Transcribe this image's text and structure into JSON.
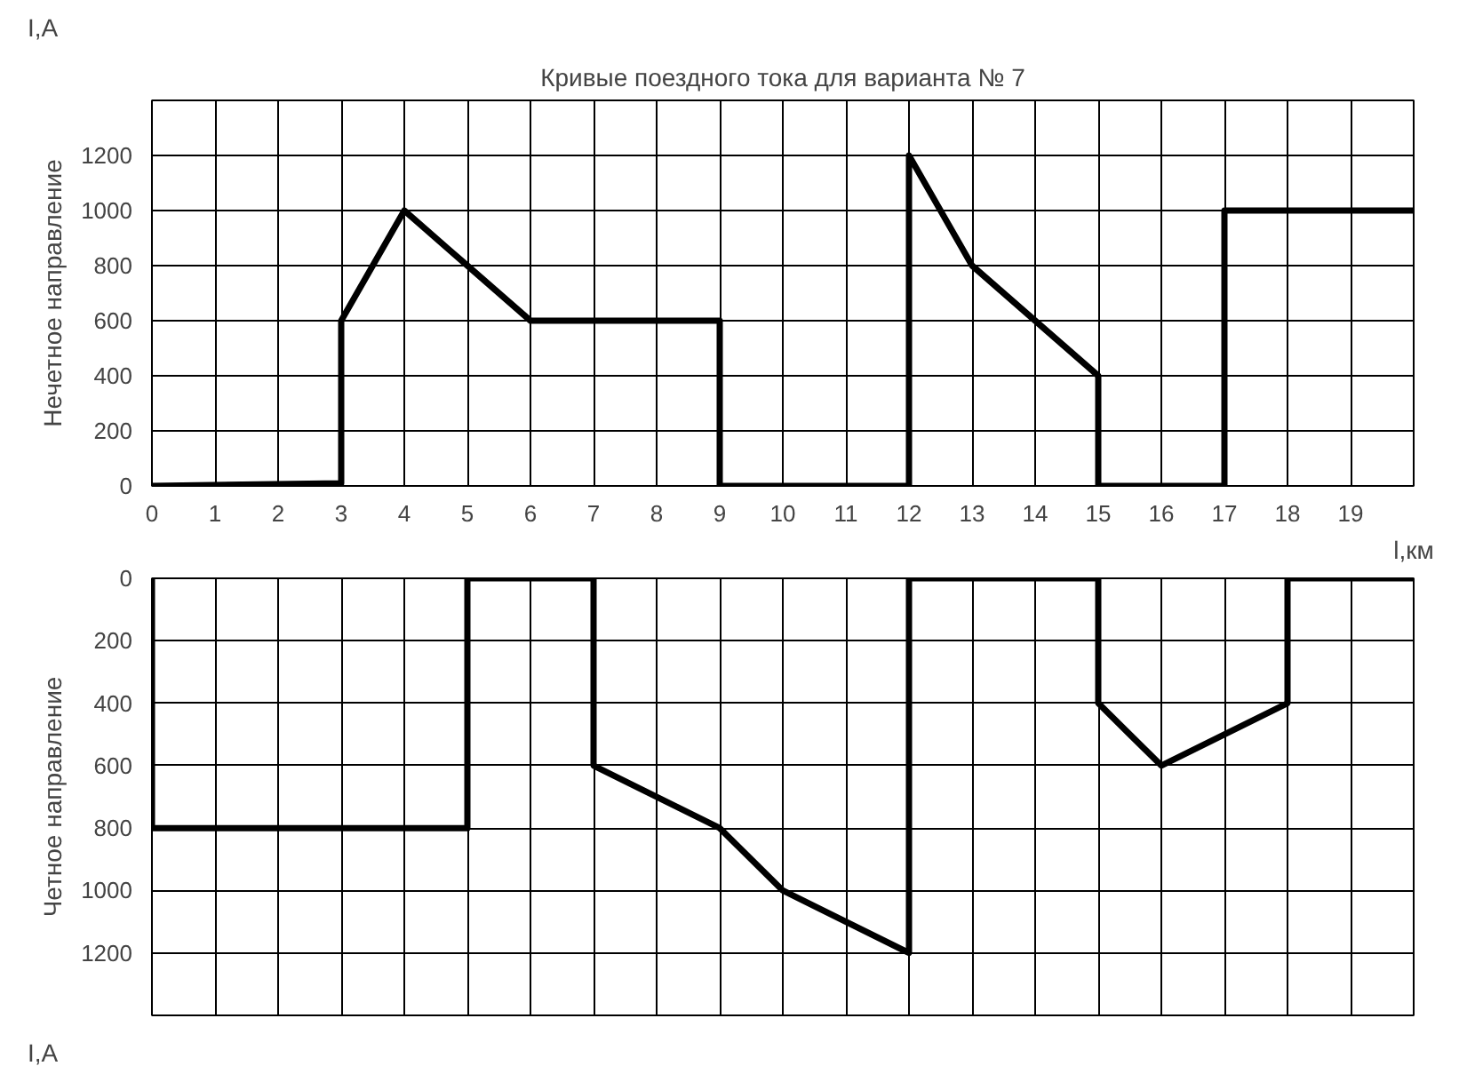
{
  "chart_data": [
    {
      "type": "line",
      "title": "Кривые поездного тока для варианта № 7",
      "xlabel": "l,км",
      "ylabel": "Нечетное направление",
      "annotations": [
        "I,A"
      ],
      "xlim": [
        0,
        20
      ],
      "ylim": [
        0,
        1400
      ],
      "xticks": [
        0,
        1,
        2,
        3,
        4,
        5,
        6,
        7,
        8,
        9,
        10,
        11,
        12,
        13,
        14,
        15,
        16,
        17,
        18,
        19
      ],
      "yticks": [
        0,
        200,
        400,
        600,
        800,
        1000,
        1200
      ],
      "grid": true,
      "series": [
        {
          "color": "#000000",
          "x": [
            0,
            3,
            3,
            4,
            5,
            6,
            9,
            9,
            12,
            12,
            13,
            15,
            15,
            17,
            17,
            20
          ],
          "values": [
            0,
            10,
            600,
            1000,
            800,
            600,
            600,
            0,
            0,
            1200,
            800,
            400,
            0,
            0,
            1000,
            1000
          ]
        }
      ]
    },
    {
      "type": "line",
      "ylabel": "Четное направление",
      "annotations": [
        "I,A"
      ],
      "xlim": [
        0,
        20
      ],
      "ylim": [
        1400,
        0
      ],
      "xticks": [
        0,
        1,
        2,
        3,
        4,
        5,
        6,
        7,
        8,
        9,
        10,
        11,
        12,
        13,
        14,
        15,
        16,
        17,
        18,
        19
      ],
      "yticks": [
        0,
        200,
        400,
        600,
        800,
        1000,
        1200
      ],
      "grid": true,
      "tick_labels": "y",
      "series": [
        {
          "color": "#000000",
          "x": [
            0,
            0,
            5,
            5,
            7,
            7,
            9,
            10,
            12,
            12,
            15,
            15,
            16,
            18,
            18,
            20
          ],
          "values": [
            0,
            800,
            800,
            0,
            0,
            600,
            800,
            1000,
            1200,
            0,
            0,
            400,
            600,
            400,
            0,
            0
          ]
        }
      ]
    }
  ]
}
